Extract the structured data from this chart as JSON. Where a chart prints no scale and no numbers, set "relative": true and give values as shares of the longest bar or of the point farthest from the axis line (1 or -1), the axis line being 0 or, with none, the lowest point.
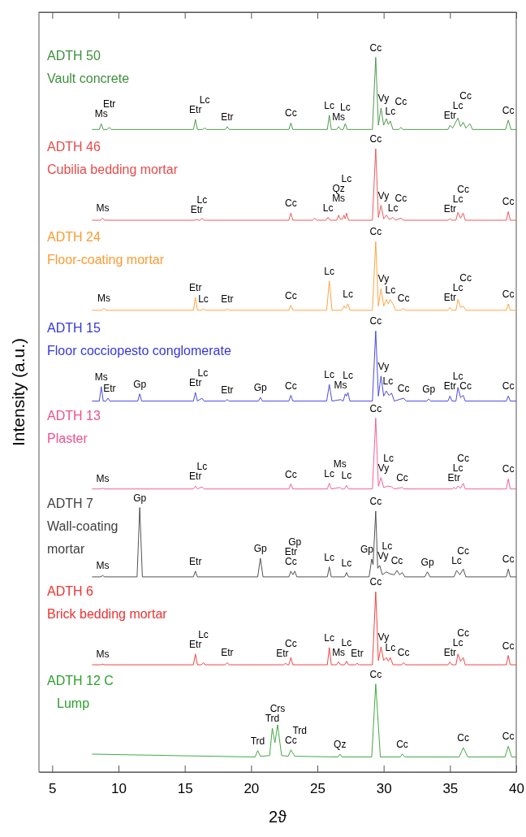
{
  "chart_data": {
    "type": "line",
    "relative": true,
    "xlabel": "2ϑ",
    "ylabel": "Intensity (a.u.)",
    "xlim": [
      4,
      40
    ],
    "xticks": [
      5,
      10,
      15,
      20,
      25,
      30,
      35,
      40
    ],
    "legend": false,
    "grid": false,
    "series": [
      {
        "name": "ADTH 50\nVault concrete",
        "color": "#3d8f3d",
        "x": [
          8,
          8.55,
          8.7,
          8.85,
          9.15,
          9.3,
          9.45,
          15.65,
          15.8,
          15.95,
          16.35,
          16.5,
          16.65,
          18.05,
          18.2,
          18.35,
          22.85,
          23.0,
          23.15,
          25.75,
          25.9,
          26.05,
          26.45,
          26.6,
          26.75,
          26.95,
          27.1,
          27.25,
          29.15,
          29.4,
          29.6,
          29.8,
          30.0,
          30.2,
          30.35,
          30.5,
          30.7,
          31.15,
          31.3,
          31.45,
          34.85,
          35.0,
          35.2,
          35.6,
          35.8,
          36.0,
          36.2,
          36.5,
          36.7,
          39.2,
          39.4,
          39.6,
          40
        ],
        "values": [
          0.899,
          0.899,
          0.907,
          0.899,
          0.899,
          0.902,
          0.899,
          0.899,
          0.913,
          0.899,
          0.899,
          0.901,
          0.899,
          0.899,
          0.903,
          0.899,
          0.899,
          0.908,
          0.899,
          0.899,
          0.919,
          0.899,
          0.899,
          0.903,
          0.899,
          0.899,
          0.907,
          0.899,
          0.899,
          1.0,
          0.905,
          0.929,
          0.905,
          0.914,
          0.906,
          0.911,
          0.899,
          0.899,
          0.902,
          0.899,
          0.899,
          0.905,
          0.901,
          0.915,
          0.903,
          0.909,
          0.901,
          0.907,
          0.899,
          0.899,
          0.912,
          0.899,
          0.899
        ]
      },
      {
        "name": "ADTH 46\nCubilia bedding mortar",
        "color": "#e84a4a",
        "x": [
          8,
          8.65,
          8.8,
          8.95,
          15.75,
          15.9,
          16.05,
          16.15,
          16.3,
          16.45,
          22.85,
          23.0,
          23.15,
          24.65,
          24.8,
          24.95,
          25.65,
          25.8,
          25.95,
          26.45,
          26.6,
          26.75,
          26.9,
          27.0,
          27.1,
          27.2,
          27.35,
          29.15,
          29.4,
          29.6,
          29.8,
          30.0,
          30.2,
          30.45,
          30.7,
          30.9,
          31.3,
          31.5,
          34.85,
          35.0,
          35.15,
          35.45,
          35.6,
          35.8,
          36.0,
          36.15,
          39.25,
          39.4,
          39.55,
          40
        ],
        "values": [
          0.772,
          0.772,
          0.775,
          0.772,
          0.772,
          0.773,
          0.772,
          0.772,
          0.775,
          0.772,
          0.772,
          0.782,
          0.772,
          0.772,
          0.775,
          0.772,
          0.772,
          0.776,
          0.772,
          0.772,
          0.779,
          0.773,
          0.774,
          0.779,
          0.774,
          0.782,
          0.772,
          0.772,
          0.872,
          0.776,
          0.793,
          0.774,
          0.779,
          0.773,
          0.776,
          0.772,
          0.775,
          0.772,
          0.772,
          0.774,
          0.772,
          0.772,
          0.783,
          0.775,
          0.782,
          0.772,
          0.772,
          0.784,
          0.772,
          0.772
        ]
      },
      {
        "name": "ADTH 24\nFloor-coating mortar",
        "color": "#ff9a30",
        "x": [
          8,
          8.75,
          8.9,
          9.05,
          15.65,
          15.8,
          15.95,
          16.25,
          16.4,
          16.55,
          18.05,
          18.2,
          18.35,
          22.85,
          23.0,
          23.15,
          25.7,
          25.9,
          26.1,
          26.85,
          27.0,
          27.15,
          27.3,
          27.45,
          29.15,
          29.4,
          29.6,
          29.8,
          30.0,
          30.2,
          30.35,
          30.5,
          30.7,
          30.9,
          31.35,
          31.5,
          31.65,
          34.85,
          35.0,
          35.15,
          35.45,
          35.6,
          35.8,
          36.0,
          36.2,
          39.25,
          39.4,
          39.55,
          40
        ],
        "values": [
          0.646,
          0.646,
          0.649,
          0.646,
          0.646,
          0.664,
          0.646,
          0.646,
          0.648,
          0.646,
          0.646,
          0.648,
          0.646,
          0.646,
          0.653,
          0.646,
          0.646,
          0.687,
          0.646,
          0.646,
          0.652,
          0.649,
          0.655,
          0.646,
          0.646,
          0.742,
          0.652,
          0.676,
          0.652,
          0.661,
          0.655,
          0.661,
          0.655,
          0.646,
          0.646,
          0.649,
          0.646,
          0.646,
          0.65,
          0.646,
          0.646,
          0.661,
          0.65,
          0.652,
          0.646,
          0.646,
          0.655,
          0.646,
          0.646
        ]
      },
      {
        "name": "ADTH 15\nFloor cocciopesto conglomerate",
        "color": "#3535e0",
        "x": [
          8,
          8.55,
          8.7,
          8.85,
          9.05,
          9.2,
          9.35,
          11.45,
          11.6,
          11.75,
          15.65,
          15.8,
          15.95,
          16.3,
          16.45,
          18.05,
          18.2,
          18.35,
          20.55,
          20.7,
          20.85,
          22.85,
          23.0,
          23.15,
          25.7,
          25.9,
          26.1,
          26.75,
          26.95,
          27.1,
          27.2,
          27.3,
          27.45,
          29.15,
          29.4,
          29.6,
          29.8,
          30.0,
          30.2,
          30.4,
          30.6,
          30.8,
          31.5,
          31.7,
          33.25,
          33.4,
          33.55,
          34.85,
          35.0,
          35.15,
          35.45,
          35.6,
          35.8,
          36.0,
          36.15,
          39.25,
          39.4,
          39.55,
          40
        ],
        "values": [
          0.519,
          0.519,
          0.539,
          0.519,
          0.519,
          0.523,
          0.519,
          0.519,
          0.529,
          0.519,
          0.519,
          0.531,
          0.519,
          0.523,
          0.519,
          0.519,
          0.521,
          0.519,
          0.519,
          0.524,
          0.519,
          0.519,
          0.527,
          0.519,
          0.519,
          0.542,
          0.519,
          0.521,
          0.519,
          0.529,
          0.526,
          0.531,
          0.519,
          0.519,
          0.617,
          0.526,
          0.554,
          0.526,
          0.533,
          0.527,
          0.53,
          0.519,
          0.523,
          0.519,
          0.519,
          0.522,
          0.519,
          0.519,
          0.526,
          0.519,
          0.519,
          0.538,
          0.524,
          0.527,
          0.519,
          0.519,
          0.526,
          0.519,
          0.519
        ]
      },
      {
        "name": "ADTH 13\nPlaster",
        "color": "#f0508a",
        "x": [
          8,
          8.65,
          8.8,
          8.95,
          15.65,
          15.8,
          15.95,
          16.3,
          16.45,
          22.85,
          23.0,
          23.15,
          25.75,
          25.9,
          26.05,
          26.7,
          26.85,
          27.05,
          27.2,
          27.35,
          29.15,
          29.4,
          29.6,
          29.8,
          30.0,
          30.3,
          30.6,
          30.8,
          31.4,
          31.55,
          35.15,
          35.3,
          35.45,
          35.6,
          35.8,
          36.0,
          36.15,
          39.25,
          39.4,
          39.55,
          40
        ],
        "values": [
          0.396,
          0.396,
          0.397,
          0.396,
          0.396,
          0.4,
          0.396,
          0.399,
          0.396,
          0.396,
          0.403,
          0.396,
          0.396,
          0.404,
          0.396,
          0.398,
          0.396,
          0.396,
          0.401,
          0.396,
          0.396,
          0.495,
          0.4,
          0.412,
          0.398,
          0.4,
          0.399,
          0.396,
          0.398,
          0.396,
          0.396,
          0.398,
          0.396,
          0.4,
          0.397,
          0.404,
          0.396,
          0.396,
          0.41,
          0.396,
          0.396
        ]
      },
      {
        "name": "ADTH 7\nWall-coating\nmortar",
        "color": "#404040",
        "x": [
          8,
          8.65,
          8.8,
          8.95,
          11.4,
          11.6,
          11.8,
          15.65,
          15.8,
          15.95,
          20.5,
          20.7,
          20.9,
          22.85,
          23.0,
          23.15,
          23.3,
          23.45,
          25.75,
          25.9,
          26.05,
          27.05,
          27.2,
          27.35,
          28.9,
          29.1,
          29.2,
          29.4,
          29.55,
          29.7,
          29.9,
          30.2,
          30.5,
          30.8,
          31.0,
          31.2,
          31.4,
          31.6,
          33.1,
          33.3,
          33.5,
          35.3,
          35.5,
          35.75,
          36.0,
          36.2,
          39.25,
          39.4,
          39.55,
          40
        ],
        "values": [
          0.273,
          0.273,
          0.275,
          0.273,
          0.273,
          0.37,
          0.273,
          0.273,
          0.281,
          0.273,
          0.273,
          0.299,
          0.273,
          0.273,
          0.281,
          0.276,
          0.281,
          0.273,
          0.273,
          0.287,
          0.273,
          0.273,
          0.279,
          0.273,
          0.273,
          0.298,
          0.29,
          0.365,
          0.285,
          0.289,
          0.276,
          0.28,
          0.277,
          0.276,
          0.282,
          0.276,
          0.279,
          0.273,
          0.273,
          0.28,
          0.273,
          0.273,
          0.282,
          0.276,
          0.284,
          0.273,
          0.273,
          0.284,
          0.273,
          0.273
        ]
      },
      {
        "name": "ADTH 6\nBrick bedding mortar",
        "color": "#f03030",
        "x": [
          8,
          8.65,
          8.8,
          8.95,
          15.65,
          15.8,
          15.95,
          16.25,
          16.4,
          16.55,
          18.05,
          18.2,
          18.35,
          22.45,
          22.6,
          22.75,
          22.85,
          23.0,
          23.15,
          25.75,
          25.9,
          26.05,
          26.45,
          26.6,
          26.75,
          27.05,
          27.2,
          27.35,
          27.85,
          28.0,
          28.15,
          29.15,
          29.4,
          29.6,
          29.8,
          30.0,
          30.2,
          30.35,
          30.5,
          30.7,
          31.35,
          31.5,
          31.65,
          34.85,
          35.0,
          35.15,
          35.45,
          35.6,
          35.8,
          36.0,
          36.15,
          39.25,
          39.4,
          39.55,
          40
        ],
        "values": [
          0.15,
          0.15,
          0.151,
          0.15,
          0.15,
          0.165,
          0.15,
          0.15,
          0.153,
          0.15,
          0.15,
          0.153,
          0.15,
          0.15,
          0.152,
          0.15,
          0.15,
          0.16,
          0.15,
          0.15,
          0.174,
          0.15,
          0.15,
          0.154,
          0.15,
          0.15,
          0.155,
          0.15,
          0.15,
          0.152,
          0.15,
          0.15,
          0.252,
          0.156,
          0.175,
          0.156,
          0.16,
          0.155,
          0.16,
          0.15,
          0.15,
          0.153,
          0.15,
          0.15,
          0.154,
          0.15,
          0.15,
          0.165,
          0.155,
          0.16,
          0.15,
          0.15,
          0.163,
          0.15,
          0.15
        ]
      },
      {
        "name": "ADTH 12 C\nLump",
        "color": "#2ca02c",
        "x": [
          8,
          14,
          20.3,
          20.5,
          20.7,
          21.4,
          21.6,
          21.8,
          22.0,
          22.3,
          22.8,
          23.0,
          23.3,
          26.55,
          26.7,
          26.85,
          29.1,
          29.4,
          29.75,
          31.25,
          31.4,
          31.6,
          35.7,
          36.0,
          36.35,
          39.15,
          39.4,
          39.65,
          40
        ],
        "values": [
          0.025,
          0.023,
          0.021,
          0.03,
          0.022,
          0.023,
          0.061,
          0.041,
          0.066,
          0.023,
          0.022,
          0.031,
          0.022,
          0.021,
          0.025,
          0.021,
          0.021,
          0.123,
          0.021,
          0.021,
          0.025,
          0.021,
          0.021,
          0.034,
          0.021,
          0.021,
          0.036,
          0.021,
          0.021
        ]
      }
    ],
    "annotations": [
      {
        "text": "Ms",
        "x": 8.7,
        "y": 0.907
      },
      {
        "text": "Etr",
        "x": 9.3,
        "y": 0.902
      },
      {
        "text": "Etr",
        "x": 15.8,
        "y": 0.913
      },
      {
        "text": "Lc",
        "x": 16.5,
        "y": 0.901
      },
      {
        "text": "Etr",
        "x": 18.2,
        "y": 0.903
      },
      {
        "text": "Cc",
        "x": 23.0,
        "y": 0.908
      },
      {
        "text": "Lc",
        "x": 25.9,
        "y": 0.919
      },
      {
        "text": "Ms",
        "x": 26.6,
        "y": 0.903
      },
      {
        "text": "Lc",
        "x": 27.1,
        "y": 0.907
      },
      {
        "text": "Cc",
        "x": 29.4,
        "y": 1.0
      },
      {
        "text": "Vy",
        "x": 29.8,
        "y": 0.929
      },
      {
        "text": "Lc",
        "x": 30.5,
        "y": 0.911
      },
      {
        "text": "Cc",
        "x": 31.3,
        "y": 0.902
      },
      {
        "text": "Etr",
        "x": 35.0,
        "y": 0.905
      },
      {
        "text": "Lc",
        "x": 35.6,
        "y": 0.915
      },
      {
        "text": "Cc",
        "x": 36.0,
        "y": 0.909
      },
      {
        "text": "Cc",
        "x": 39.4,
        "y": 0.912
      },
      {
        "text": "Ms",
        "x": 8.8,
        "y": 0.775
      },
      {
        "text": "Etr",
        "x": 15.9,
        "y": 0.773
      },
      {
        "text": "Lc",
        "x": 16.3,
        "y": 0.775
      },
      {
        "text": "Cc",
        "x": 23.0,
        "y": 0.782
      },
      {
        "text": "Lc",
        "x": 25.8,
        "y": 0.776
      },
      {
        "text": "Ms",
        "x": 26.6,
        "y": 0.779
      },
      {
        "text": "Qz",
        "x": 26.6,
        "y": 0.779
      },
      {
        "text": "Lc",
        "x": 27.2,
        "y": 0.782
      },
      {
        "text": "Cc",
        "x": 29.4,
        "y": 0.872
      },
      {
        "text": "Vy",
        "x": 29.8,
        "y": 0.793
      },
      {
        "text": "Lc",
        "x": 30.7,
        "y": 0.776
      },
      {
        "text": "Cc",
        "x": 31.3,
        "y": 0.775
      },
      {
        "text": "Etr",
        "x": 35.0,
        "y": 0.774
      },
      {
        "text": "Lc",
        "x": 35.6,
        "y": 0.783
      },
      {
        "text": "Cc",
        "x": 36.0,
        "y": 0.782
      },
      {
        "text": "Cc",
        "x": 39.4,
        "y": 0.784
      },
      {
        "text": "Ms",
        "x": 8.9,
        "y": 0.649
      },
      {
        "text": "Etr",
        "x": 15.8,
        "y": 0.664
      },
      {
        "text": "Lc",
        "x": 16.4,
        "y": 0.648
      },
      {
        "text": "Etr",
        "x": 18.2,
        "y": 0.648
      },
      {
        "text": "Cc",
        "x": 23.0,
        "y": 0.653
      },
      {
        "text": "Lc",
        "x": 25.9,
        "y": 0.687
      },
      {
        "text": "Lc",
        "x": 27.3,
        "y": 0.655
      },
      {
        "text": "Cc",
        "x": 29.4,
        "y": 0.742
      },
      {
        "text": "Vy",
        "x": 29.8,
        "y": 0.676
      },
      {
        "text": "Lc",
        "x": 30.5,
        "y": 0.661
      },
      {
        "text": "Cc",
        "x": 31.5,
        "y": 0.649
      },
      {
        "text": "Etr",
        "x": 35.0,
        "y": 0.65
      },
      {
        "text": "Lc",
        "x": 35.6,
        "y": 0.661
      },
      {
        "text": "Cc",
        "x": 36.0,
        "y": 0.652
      },
      {
        "text": "Cc",
        "x": 39.4,
        "y": 0.655
      },
      {
        "text": "Ms",
        "x": 8.7,
        "y": 0.539
      },
      {
        "text": "Etr",
        "x": 9.2,
        "y": 0.523
      },
      {
        "text": "Gp",
        "x": 11.6,
        "y": 0.529
      },
      {
        "text": "Etr",
        "x": 15.8,
        "y": 0.531
      },
      {
        "text": "Lc",
        "x": 16.3,
        "y": 0.523
      },
      {
        "text": "Etr",
        "x": 18.2,
        "y": 0.521
      },
      {
        "text": "Gp",
        "x": 20.7,
        "y": 0.524
      },
      {
        "text": "Cc",
        "x": 23.0,
        "y": 0.527
      },
      {
        "text": "Lc",
        "x": 25.9,
        "y": 0.542
      },
      {
        "text": "Ms",
        "x": 26.75,
        "y": 0.521
      },
      {
        "text": "Lc",
        "x": 27.3,
        "y": 0.531
      },
      {
        "text": "Cc",
        "x": 29.4,
        "y": 0.617
      },
      {
        "text": "Vy",
        "x": 29.8,
        "y": 0.554
      },
      {
        "text": "Lc",
        "x": 30.2,
        "y": 0.533
      },
      {
        "text": "Cc",
        "x": 31.5,
        "y": 0.523
      },
      {
        "text": "Gp",
        "x": 33.4,
        "y": 0.522
      },
      {
        "text": "Etr",
        "x": 35.0,
        "y": 0.526
      },
      {
        "text": "Lc",
        "x": 35.6,
        "y": 0.538
      },
      {
        "text": "Cc",
        "x": 36.0,
        "y": 0.527
      },
      {
        "text": "Cc",
        "x": 39.4,
        "y": 0.526
      },
      {
        "text": "Ms",
        "x": 8.8,
        "y": 0.397
      },
      {
        "text": "Etr",
        "x": 15.8,
        "y": 0.4
      },
      {
        "text": "Lc",
        "x": 16.3,
        "y": 0.399
      },
      {
        "text": "Cc",
        "x": 23.0,
        "y": 0.403
      },
      {
        "text": "Lc",
        "x": 25.9,
        "y": 0.404
      },
      {
        "text": "Ms",
        "x": 26.7,
        "y": 0.398
      },
      {
        "text": "Lc",
        "x": 27.2,
        "y": 0.401
      },
      {
        "text": "Cc",
        "x": 29.4,
        "y": 0.495
      },
      {
        "text": "Vy",
        "x": 29.8,
        "y": 0.412
      },
      {
        "text": "Lc",
        "x": 30.3,
        "y": 0.4
      },
      {
        "text": "Cc",
        "x": 31.4,
        "y": 0.398
      },
      {
        "text": "Etr",
        "x": 35.3,
        "y": 0.398
      },
      {
        "text": "Lc",
        "x": 35.6,
        "y": 0.4
      },
      {
        "text": "Cc",
        "x": 36.0,
        "y": 0.404
      },
      {
        "text": "Cc",
        "x": 39.4,
        "y": 0.41
      },
      {
        "text": "Ms",
        "x": 8.8,
        "y": 0.275
      },
      {
        "text": "Gp",
        "x": 11.6,
        "y": 0.37
      },
      {
        "text": "Etr",
        "x": 15.8,
        "y": 0.281
      },
      {
        "text": "Gp",
        "x": 20.7,
        "y": 0.299
      },
      {
        "text": "Cc",
        "x": 23.0,
        "y": 0.281
      },
      {
        "text": "Etr",
        "x": 23.0,
        "y": 0.281
      },
      {
        "text": "Gp",
        "x": 23.3,
        "y": 0.281
      },
      {
        "text": "Lc",
        "x": 25.9,
        "y": 0.287
      },
      {
        "text": "Lc",
        "x": 27.2,
        "y": 0.279
      },
      {
        "text": "Gp",
        "x": 29.1,
        "y": 0.298
      },
      {
        "text": "Cc",
        "x": 29.4,
        "y": 0.365
      },
      {
        "text": "Vy",
        "x": 29.7,
        "y": 0.289
      },
      {
        "text": "Lc",
        "x": 30.2,
        "y": 0.28
      },
      {
        "text": "Cc",
        "x": 31.0,
        "y": 0.282
      },
      {
        "text": "Gp",
        "x": 33.3,
        "y": 0.28
      },
      {
        "text": "Lc",
        "x": 35.5,
        "y": 0.282
      },
      {
        "text": "Cc",
        "x": 36.0,
        "y": 0.284
      },
      {
        "text": "Cc",
        "x": 39.4,
        "y": 0.284
      },
      {
        "text": "Ms",
        "x": 8.8,
        "y": 0.151
      },
      {
        "text": "Etr",
        "x": 15.8,
        "y": 0.165
      },
      {
        "text": "Lc",
        "x": 16.4,
        "y": 0.153
      },
      {
        "text": "Etr",
        "x": 18.2,
        "y": 0.153
      },
      {
        "text": "Etr",
        "x": 22.6,
        "y": 0.152
      },
      {
        "text": "Cc",
        "x": 23.0,
        "y": 0.16
      },
      {
        "text": "Lc",
        "x": 25.9,
        "y": 0.174
      },
      {
        "text": "Ms",
        "x": 26.6,
        "y": 0.154
      },
      {
        "text": "Lc",
        "x": 27.2,
        "y": 0.155
      },
      {
        "text": "Etr",
        "x": 28.0,
        "y": 0.152
      },
      {
        "text": "Cc",
        "x": 29.4,
        "y": 0.252
      },
      {
        "text": "Vy",
        "x": 29.8,
        "y": 0.175
      },
      {
        "text": "Lc",
        "x": 30.5,
        "y": 0.16
      },
      {
        "text": "Cc",
        "x": 31.5,
        "y": 0.153
      },
      {
        "text": "Etr",
        "x": 35.0,
        "y": 0.154
      },
      {
        "text": "Lc",
        "x": 35.6,
        "y": 0.165
      },
      {
        "text": "Cc",
        "x": 36.0,
        "y": 0.16
      },
      {
        "text": "Cc",
        "x": 39.4,
        "y": 0.163
      },
      {
        "text": "Trd",
        "x": 20.5,
        "y": 0.03
      },
      {
        "text": "Trd",
        "x": 21.6,
        "y": 0.061
      },
      {
        "text": "Crs",
        "x": 22.0,
        "y": 0.066
      },
      {
        "text": "Cc",
        "x": 23.0,
        "y": 0.031
      },
      {
        "text": "Trd",
        "x": 23.3,
        "y": 0.022
      },
      {
        "text": "Qz",
        "x": 26.7,
        "y": 0.025
      },
      {
        "text": "Cc",
        "x": 29.4,
        "y": 0.123
      },
      {
        "text": "Cc",
        "x": 31.4,
        "y": 0.025
      },
      {
        "text": "Cc",
        "x": 36.0,
        "y": 0.034
      },
      {
        "text": "Cc",
        "x": 39.4,
        "y": 0.036
      }
    ]
  }
}
